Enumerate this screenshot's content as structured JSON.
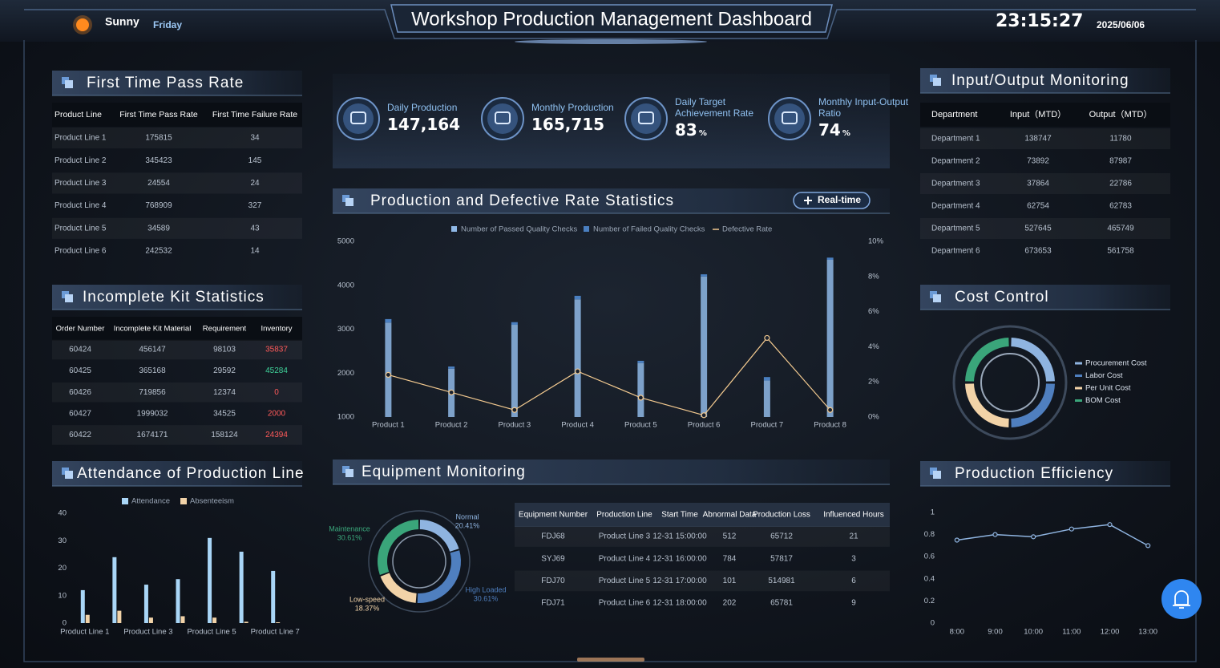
{
  "header": {
    "weather": "Sunny",
    "weekday": "Friday",
    "title": "Workshop Production Management Dashboard",
    "time": "23:15:27",
    "date": "2025/06/06"
  },
  "first_pass": {
    "title": "First Time Pass Rate",
    "columns": [
      "Product Line",
      "First Time Pass Rate",
      "First Time Failure Rate"
    ],
    "rows": [
      [
        "Product Line 1",
        175815,
        34
      ],
      [
        "Product Line 2",
        345423,
        145
      ],
      [
        "Product Line 3",
        24554,
        24
      ],
      [
        "Product Line 4",
        768909,
        327
      ],
      [
        "Product Line 5",
        34589,
        43
      ],
      [
        "Product Line 6",
        242532,
        14
      ]
    ]
  },
  "incomplete_kit": {
    "title": "Incomplete Kit Statistics",
    "columns": [
      "Order Number",
      "Incomplete Kit Material",
      "Requirement",
      "Inventory"
    ],
    "rows": [
      [
        60424,
        456147,
        98103,
        35837
      ],
      [
        60425,
        365168,
        29592,
        45284
      ],
      [
        60426,
        719856,
        12374,
        0
      ],
      [
        60427,
        1999032,
        34525,
        2000
      ],
      [
        60422,
        1674171,
        158124,
        24394
      ]
    ]
  },
  "attendance": {
    "type": "bar",
    "title": "Attendance of Production Line",
    "categories": [
      "Product Line 1",
      null,
      "Product Line 3",
      null,
      "Product Line 5",
      null,
      "Product Line 7"
    ],
    "series": [
      {
        "name": "Attendance",
        "color": "#a9d6f7",
        "values": [
          12,
          24,
          14,
          16,
          31,
          26,
          19
        ]
      },
      {
        "name": "Absenteeism",
        "color": "#f2d3a8",
        "values": [
          3,
          4.5,
          2,
          2.5,
          2,
          0.5,
          0.3
        ]
      }
    ],
    "ylim": [
      0,
      40
    ],
    "yticks": [
      0,
      10,
      20,
      30,
      40
    ]
  },
  "kpis": [
    {
      "label": "Daily Production",
      "value": "147,164"
    },
    {
      "label": "Monthly Production",
      "value": "165,715"
    },
    {
      "label": "Daily Target Achievement Rate",
      "value": "83",
      "unit": "%"
    },
    {
      "label": "Monthly Input-Output Ratio",
      "value": "74",
      "unit": "%"
    }
  ],
  "production": {
    "type": "bar",
    "title": "Production and Defective Rate Statistics",
    "badge": "Real-time",
    "categories": [
      "Product 1",
      "Product 2",
      "Product 3",
      "Product 4",
      "Product 5",
      "Product 6",
      "Product 7",
      "Product 8"
    ],
    "series": [
      {
        "name": "Number of Passed Quality Checks",
        "color": "#8fb8e6",
        "values": [
          3150,
          2100,
          3100,
          3680,
          2230,
          4200,
          1830,
          4580
        ]
      },
      {
        "name": "Number of Failed Quality Checks",
        "color": "#4a7fc0",
        "values": [
          80,
          50,
          60,
          80,
          50,
          50,
          80,
          50
        ]
      },
      {
        "name": "Defective Rate",
        "type": "line",
        "axis": "y2",
        "color": "#f2c98f",
        "values": [
          2.4,
          1.4,
          0.4,
          2.6,
          1.1,
          0.1,
          4.5,
          0.4
        ]
      }
    ],
    "ylim": [
      1000,
      5000
    ],
    "yticks": [
      1000,
      2000,
      3000,
      4000,
      5000
    ],
    "y2lim": [
      0,
      10
    ],
    "y2ticks": [
      {
        "value": 0,
        "label": "0%"
      },
      {
        "value": 2,
        "label": "2%"
      },
      {
        "value": 4,
        "label": "4%"
      },
      {
        "value": 6,
        "label": "6%"
      },
      {
        "value": 8,
        "label": "8%"
      },
      {
        "value": 10,
        "label": "10%"
      }
    ]
  },
  "equipment": {
    "title": "Equipment Monitoring",
    "chart": {
      "type": "pie",
      "categories": [
        "Normal",
        "High Loaded",
        "Low-speed",
        "Maintenance"
      ],
      "values": [
        20.41,
        30.61,
        18.37,
        30.61
      ],
      "value_labels": [
        "20.41%",
        "30.61%",
        "18.37%",
        "30.61%"
      ],
      "colors": [
        "#8fb4e0",
        "#4f7fbf",
        "#f2d3a8",
        "#3aa57a"
      ]
    },
    "table": {
      "columns": [
        "Equipment Number",
        "Production Line",
        "Start Time",
        "Abnormal Data",
        "Production Loss",
        "Influenced Hours"
      ],
      "rows": [
        [
          "FDJ68",
          "Product Line 3",
          "12-31 15:00:00",
          512,
          65712,
          21
        ],
        [
          "SYJ69",
          "Product Line 4",
          "12-31 16:00:00",
          784,
          57817,
          3
        ],
        [
          "FDJ70",
          "Product Line 5",
          "12-31 17:00:00",
          101,
          514981,
          6
        ],
        [
          "FDJ71",
          "Product Line 6",
          "12-31 18:00:00",
          202,
          65781,
          9
        ]
      ]
    }
  },
  "io": {
    "title": "Input/Output Monitoring",
    "columns": [
      "Department",
      "Input（MTD）",
      "Output（MTD）"
    ],
    "rows": [
      [
        "Department 1",
        138747,
        11780
      ],
      [
        "Department 2",
        73892,
        87987
      ],
      [
        "Department 3",
        37864,
        22786
      ],
      [
        "Department 4",
        62754,
        62783
      ],
      [
        "Department 5",
        527645,
        465749
      ],
      [
        "Department 6",
        673653,
        561758
      ]
    ]
  },
  "cost": {
    "type": "pie",
    "title": "Cost Control",
    "categories": [
      "Procurement Cost",
      "Labor Cost",
      "Per Unit Cost",
      "BOM Cost"
    ],
    "values": [
      25,
      25,
      25,
      25
    ],
    "colors": [
      "#8fb4e0",
      "#4f7fbf",
      "#f2d3a8",
      "#3aa57a"
    ]
  },
  "efficiency": {
    "type": "line",
    "title": "Production Efficiency",
    "categories": [
      "8:00",
      "9:00",
      "10:00",
      "11:00",
      "12:00",
      "13:00"
    ],
    "values": [
      0.75,
      0.8,
      0.78,
      0.85,
      0.89,
      0.7
    ],
    "color": "#8fb4e0",
    "ylim": [
      0,
      1
    ],
    "yticks": [
      0,
      0.2,
      0.4,
      0.6,
      0.8,
      1
    ]
  }
}
